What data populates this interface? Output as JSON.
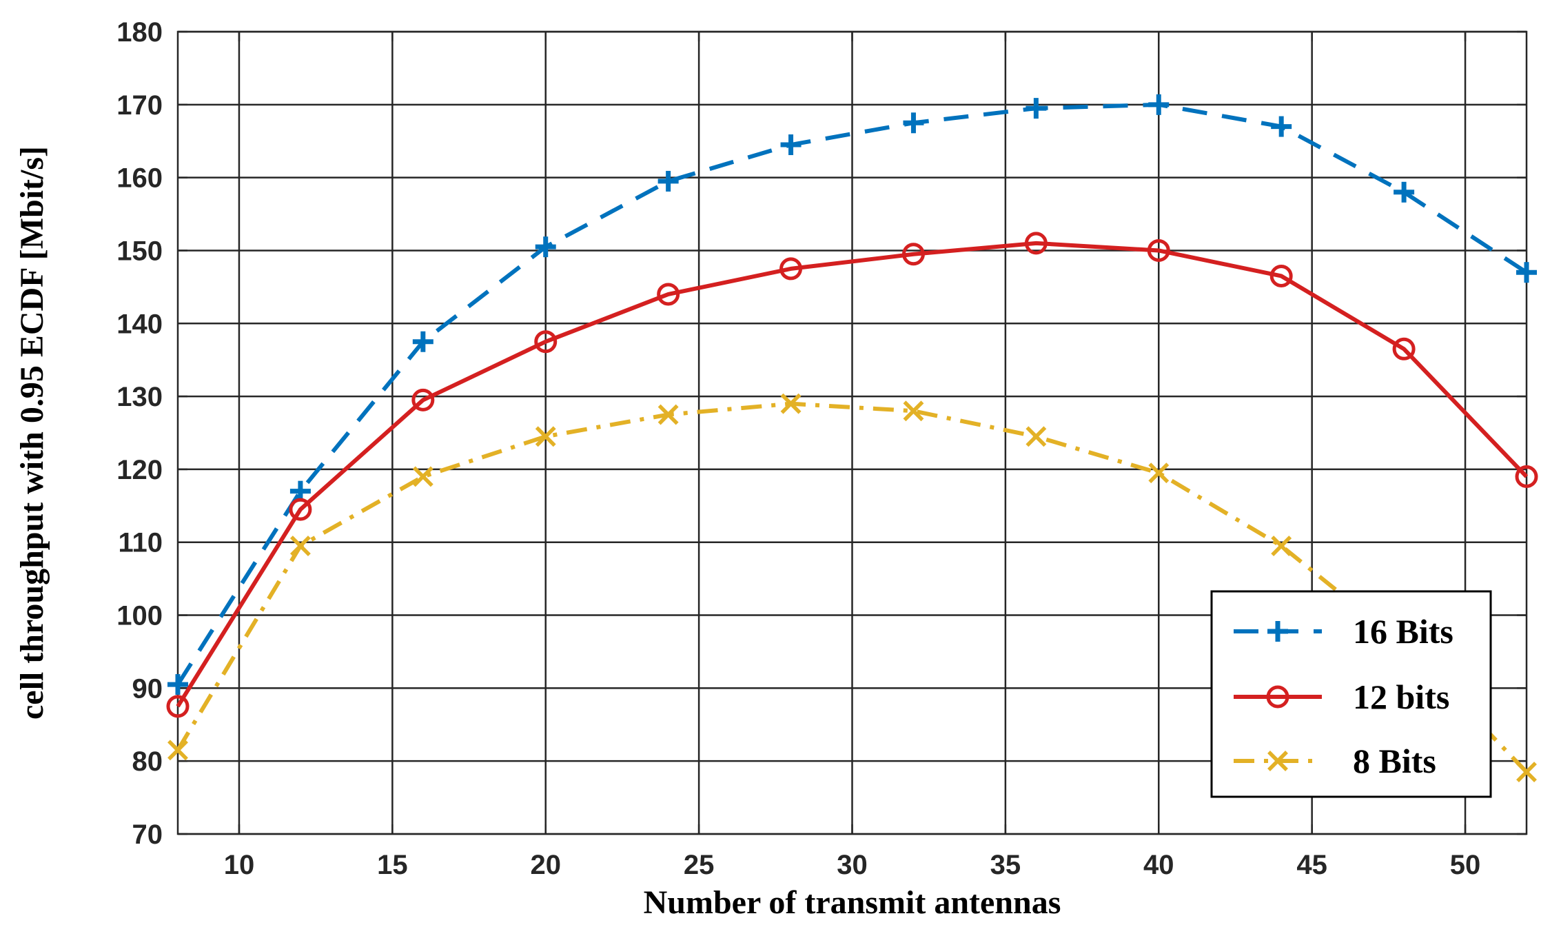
{
  "chart_data": {
    "type": "line",
    "title": "",
    "xlabel": "Number of transmit antennas",
    "ylabel": "cell throughput with 0.95 ECDF [Mbit/s]",
    "xlim": [
      8,
      52
    ],
    "ylim": [
      70,
      180
    ],
    "xticks": [
      10,
      15,
      20,
      25,
      30,
      35,
      40,
      45,
      50
    ],
    "yticks": [
      70,
      80,
      90,
      100,
      110,
      120,
      130,
      140,
      150,
      160,
      170,
      180
    ],
    "grid": true,
    "legend_position": "bottom-right",
    "x": [
      8,
      12,
      16,
      20,
      24,
      28,
      32,
      36,
      40,
      44,
      48,
      52
    ],
    "series": [
      {
        "name": "16 Bits",
        "color": "#0072BD",
        "line_style": "dashed",
        "marker": "plus",
        "values": [
          90.5,
          117,
          137.5,
          150.5,
          159.5,
          164.5,
          167.5,
          169.5,
          170,
          167,
          158,
          147
        ]
      },
      {
        "name": "12 bits",
        "color": "#D42020",
        "line_style": "solid",
        "marker": "circle",
        "values": [
          87.5,
          114.5,
          129.5,
          137.5,
          144,
          147.5,
          149.5,
          151,
          150,
          146.5,
          136.5,
          119
        ]
      },
      {
        "name": "8 Bits",
        "color": "#E3B126",
        "line_style": "dash-dot",
        "marker": "x",
        "values": [
          81.5,
          109.5,
          119,
          124.5,
          127.5,
          129,
          128,
          124.5,
          119.5,
          109.5,
          96,
          78.5
        ]
      }
    ]
  }
}
